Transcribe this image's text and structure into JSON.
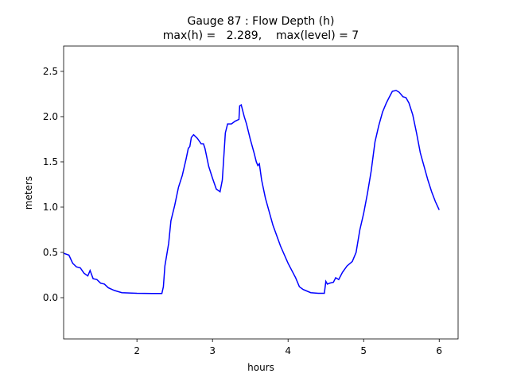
{
  "chart_data": {
    "type": "line",
    "title": "Gauge 87 : Flow Depth (h)",
    "subtitle": "max(h) =   2.289,    max(level) = 7",
    "x_label": "hours",
    "y_label": "meters",
    "xlim": [
      1.03,
      6.25
    ],
    "ylim": [
      -0.456,
      2.78
    ],
    "xticks": [
      2,
      3,
      4,
      5,
      6
    ],
    "yticks": [
      {
        "value": 0,
        "label": "0.0"
      },
      0.5,
      {
        "value": 1,
        "label": "1.0"
      },
      1.5,
      {
        "value": 2,
        "label": "2.0"
      },
      2.5
    ],
    "grid": false,
    "series": [
      {
        "name": "h",
        "color": "#0000ff",
        "x": [
          1.03,
          1.1,
          1.15,
          1.2,
          1.25,
          1.3,
          1.35,
          1.38,
          1.42,
          1.47,
          1.52,
          1.57,
          1.62,
          1.7,
          1.8,
          2.0,
          2.2,
          2.33,
          2.35,
          2.37,
          2.42,
          2.45,
          2.5,
          2.55,
          2.6,
          2.65,
          2.68,
          2.7,
          2.72,
          2.75,
          2.8,
          2.85,
          2.88,
          2.9,
          2.95,
          3.0,
          3.05,
          3.1,
          3.13,
          3.17,
          3.2,
          3.25,
          3.3,
          3.35,
          3.36,
          3.38,
          3.42,
          3.45,
          3.5,
          3.55,
          3.58,
          3.6,
          3.62,
          3.65,
          3.7,
          3.75,
          3.8,
          3.9,
          4.0,
          4.1,
          4.15,
          4.2,
          4.3,
          4.4,
          4.48,
          4.5,
          4.52,
          4.55,
          4.6,
          4.63,
          4.67,
          4.72,
          4.78,
          4.85,
          4.9,
          4.95,
          5.0,
          5.05,
          5.1,
          5.15,
          5.2,
          5.25,
          5.3,
          5.33,
          5.38,
          5.43,
          5.47,
          5.52,
          5.56,
          5.6,
          5.65,
          5.7,
          5.75,
          5.8,
          5.85,
          5.9,
          5.95,
          6.0
        ],
        "values": [
          0.49,
          0.47,
          0.38,
          0.34,
          0.33,
          0.27,
          0.24,
          0.3,
          0.21,
          0.2,
          0.16,
          0.15,
          0.11,
          0.08,
          0.055,
          0.048,
          0.046,
          0.046,
          0.12,
          0.35,
          0.6,
          0.85,
          1.02,
          1.22,
          1.35,
          1.53,
          1.65,
          1.67,
          1.77,
          1.8,
          1.76,
          1.7,
          1.7,
          1.65,
          1.45,
          1.32,
          1.2,
          1.17,
          1.3,
          1.82,
          1.92,
          1.92,
          1.95,
          1.97,
          2.12,
          2.13,
          2.0,
          1.92,
          1.75,
          1.6,
          1.5,
          1.46,
          1.48,
          1.3,
          1.1,
          0.95,
          0.8,
          0.57,
          0.38,
          0.22,
          0.12,
          0.09,
          0.055,
          0.048,
          0.048,
          0.18,
          0.15,
          0.16,
          0.17,
          0.22,
          0.2,
          0.28,
          0.35,
          0.4,
          0.5,
          0.75,
          0.93,
          1.15,
          1.4,
          1.72,
          1.9,
          2.05,
          2.15,
          2.2,
          2.28,
          2.289,
          2.27,
          2.22,
          2.21,
          2.15,
          2.02,
          1.82,
          1.6,
          1.45,
          1.3,
          1.17,
          1.06,
          0.97
        ]
      }
    ]
  }
}
